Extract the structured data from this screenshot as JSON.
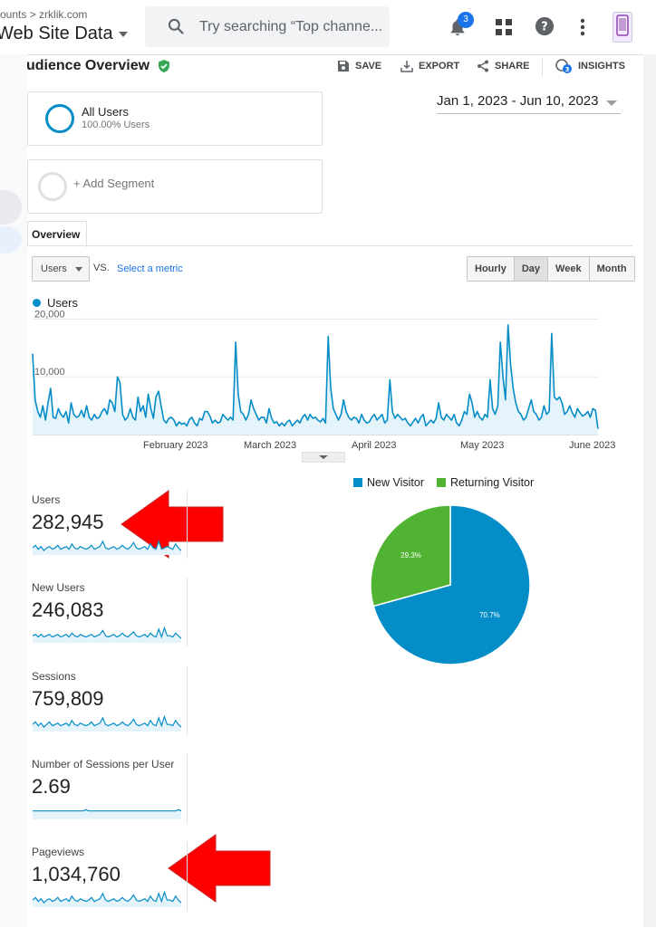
{
  "header": {
    "breadcrumb": "ounts > zrklik.com",
    "property": "Web Site Data",
    "search_placeholder": "Try searching “Top channe...",
    "notifications_count": "3",
    "icons": [
      "search-icon",
      "bell-icon",
      "apps-grid-icon",
      "help-icon",
      "more-vert-icon",
      "avatar"
    ]
  },
  "report": {
    "title": "udience Overview",
    "toolbar": {
      "save": "SAVE",
      "export": "EXPORT",
      "share": "SHARE",
      "insights": "INSIGHTS",
      "insights_count": "3"
    }
  },
  "segments": {
    "all_users": {
      "name": "All Users",
      "pct": "100.00% Users"
    },
    "add_label": "+ Add Segment"
  },
  "date_range": "Jan 1, 2023 - Jun 10, 2023",
  "tabs": {
    "overview": "Overview"
  },
  "controls": {
    "metric": "Users",
    "vs": "VS.",
    "select_metric": "Select a metric",
    "granularity": [
      "Hourly",
      "Day",
      "Week",
      "Month"
    ],
    "granularity_selected": "Day"
  },
  "chart_data": [
    {
      "type": "line",
      "series": [
        {
          "name": "Users",
          "values": [
            14000,
            6000,
            4000,
            3000,
            5000,
            2500,
            5500,
            8000,
            3000,
            2800,
            4500,
            3500,
            3000,
            4000,
            2000,
            5500,
            3500,
            3000,
            3200,
            4200,
            3000,
            5000,
            3000,
            2500,
            3500,
            2800,
            3000,
            4000,
            4500,
            3500,
            6000,
            5500,
            4000,
            10000,
            9000,
            3500,
            2500,
            3000,
            4500,
            3000,
            2500,
            6500,
            4000,
            5000,
            3000,
            7000,
            4500,
            2800,
            6500,
            7500,
            5000,
            2500,
            2000,
            2800,
            3000,
            2500,
            1500,
            2200,
            1800,
            2000,
            1500,
            2600,
            3000,
            2000,
            1500,
            2800,
            2500,
            4000,
            4000,
            3200,
            2000,
            2500,
            2000,
            2200,
            3500,
            3000,
            2500,
            3000,
            2500,
            16000,
            7000,
            4000,
            3500,
            2500,
            3500,
            6000,
            4500,
            3500,
            2500,
            3000,
            3000,
            2000,
            4500,
            2800,
            2000,
            2200,
            1500,
            2000,
            1500,
            2200,
            2500,
            1500,
            2000,
            2500,
            2000,
            3000,
            3500,
            2500,
            3500,
            2800,
            3000,
            2500,
            2200,
            2800,
            2000,
            17000,
            8000,
            4500,
            3500,
            2500,
            3500,
            6000,
            4000,
            3000,
            2500,
            3000,
            2800,
            2000,
            3500,
            2500,
            2000,
            2200,
            3000,
            3500,
            2500,
            3000,
            3500,
            2000,
            2500,
            9500,
            4000,
            2800,
            3500,
            3000,
            2500,
            2800,
            2000,
            1500,
            2200,
            2800,
            2000,
            3000,
            3500,
            1500,
            2000,
            2500,
            2000,
            2800,
            5500,
            3000,
            2500,
            3500,
            3000,
            2500,
            3500,
            2000,
            1500,
            2500,
            4000,
            3500,
            7000,
            5500,
            3000,
            4000,
            3000,
            2500,
            3500,
            3000,
            9500,
            4500,
            3500,
            5000,
            16000,
            10000,
            6000,
            19000,
            12000,
            8000,
            5500,
            4000,
            3500,
            2500,
            3000,
            4500,
            6000,
            4000,
            3500,
            2500,
            3000,
            5000,
            3500,
            4000,
            17500,
            6500,
            6000,
            6500,
            5500,
            3500,
            4000,
            5000,
            3800,
            3000,
            4500,
            3800,
            3200,
            3500,
            4000,
            3000,
            4500,
            4200,
            1000
          ]
        }
      ],
      "y_ticks": [
        "20,000",
        "10,000"
      ],
      "ylim": [
        0,
        21000
      ],
      "x_labels": [
        "February 2023",
        "March 2023",
        "April 2023",
        "May 2023",
        "June 2023"
      ],
      "legend": "top-left",
      "grid": true
    },
    {
      "type": "pie",
      "labels": [
        "New Visitor",
        "Returning Visitor"
      ],
      "values": [
        70.7,
        29.3
      ],
      "data_labels": [
        "70.7%",
        "29.3%"
      ],
      "colors": [
        "#058dc7",
        "#50b432"
      ],
      "legend": "top"
    }
  ],
  "metrics": [
    {
      "label": "Users",
      "value": "282,945",
      "spark": [
        4,
        6,
        3,
        5,
        2,
        4,
        5,
        3,
        4,
        6,
        3,
        4,
        5,
        3,
        7,
        4,
        3,
        5,
        4,
        3,
        4,
        6,
        3,
        4,
        5,
        9,
        4,
        3,
        4,
        5,
        3,
        4,
        6,
        4,
        3,
        5,
        8,
        4,
        3,
        4,
        5,
        3,
        7,
        4,
        3,
        9,
        3,
        4,
        5,
        4,
        3,
        7,
        4,
        2
      ]
    },
    {
      "label": "New Users",
      "value": "246,083",
      "spark": [
        4,
        5,
        3,
        5,
        3,
        4,
        5,
        3,
        4,
        5,
        3,
        4,
        5,
        3,
        6,
        4,
        3,
        5,
        4,
        3,
        4,
        5,
        3,
        4,
        5,
        8,
        4,
        3,
        4,
        5,
        3,
        4,
        6,
        4,
        3,
        5,
        7,
        4,
        3,
        4,
        5,
        3,
        6,
        4,
        3,
        9,
        3,
        10,
        4,
        4,
        3,
        6,
        4,
        2
      ]
    },
    {
      "label": "Sessions",
      "value": "759,809",
      "spark": [
        4,
        6,
        3,
        5,
        2,
        4,
        6,
        3,
        4,
        5,
        3,
        4,
        5,
        3,
        7,
        4,
        3,
        5,
        4,
        3,
        4,
        6,
        3,
        4,
        5,
        9,
        4,
        3,
        4,
        5,
        3,
        4,
        6,
        4,
        3,
        5,
        8,
        4,
        3,
        4,
        5,
        3,
        7,
        4,
        3,
        9,
        3,
        10,
        4,
        4,
        3,
        7,
        4,
        2
      ]
    },
    {
      "label": "Number of Sessions per User",
      "value": "2.69",
      "spark": [
        5,
        5,
        5,
        5,
        5,
        5,
        5,
        5,
        5,
        5,
        5,
        5,
        5,
        5,
        5,
        5,
        5,
        5,
        5,
        6,
        5,
        5,
        5,
        5,
        5,
        5,
        5,
        5,
        5,
        5,
        5,
        5,
        5,
        5,
        5,
        5,
        5,
        5,
        5,
        5,
        5,
        5,
        5,
        5,
        5,
        5,
        5,
        5,
        5,
        5,
        5,
        5,
        6,
        5
      ]
    },
    {
      "label": "Pageviews",
      "value": "1,034,760",
      "spark": [
        4,
        6,
        3,
        5,
        2,
        4,
        5,
        3,
        4,
        6,
        3,
        4,
        5,
        3,
        7,
        4,
        3,
        5,
        4,
        3,
        4,
        6,
        3,
        4,
        5,
        9,
        4,
        3,
        4,
        5,
        3,
        4,
        6,
        4,
        3,
        5,
        8,
        4,
        3,
        4,
        5,
        3,
        7,
        4,
        3,
        9,
        3,
        10,
        4,
        4,
        3,
        7,
        4,
        2
      ]
    }
  ],
  "colors": {
    "accent": "#058dc7",
    "returning": "#50b432",
    "annotation_arrow": "#ff0000",
    "verified": "#34a853"
  }
}
